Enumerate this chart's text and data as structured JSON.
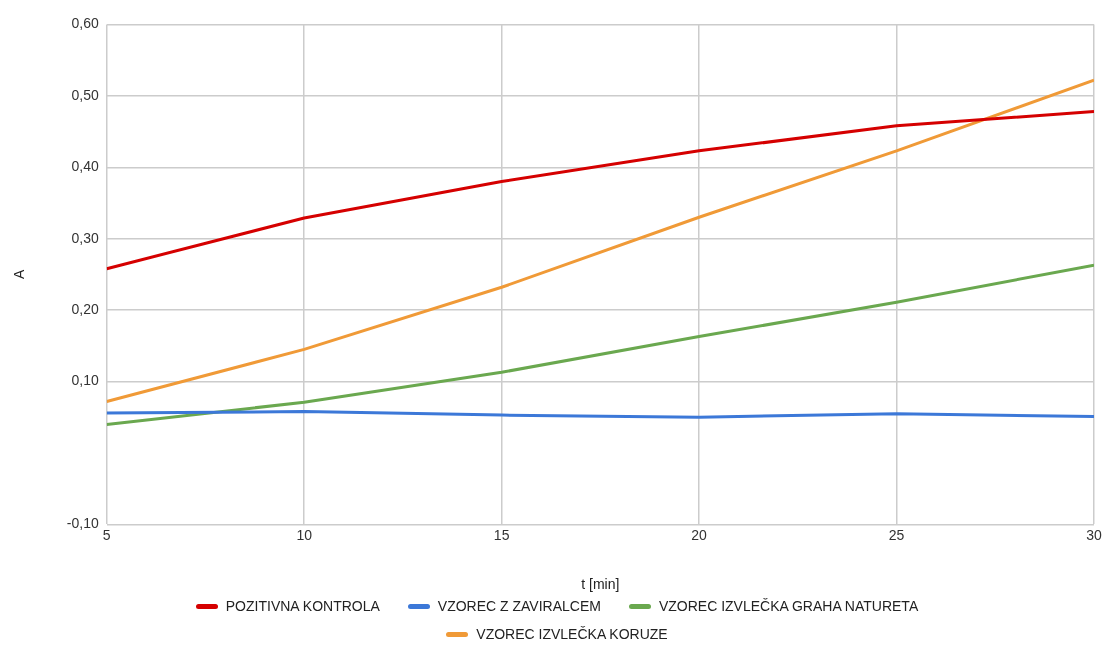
{
  "chart_data": {
    "type": "line",
    "xlabel": "t [min]",
    "ylabel": "A",
    "x": [
      5,
      10,
      15,
      20,
      25,
      30
    ],
    "series": [
      {
        "name": "POZITIVNA KONTROLA",
        "color": "#d50000",
        "values": [
          0.258,
          0.329,
          0.38,
          0.423,
          0.458,
          0.478
        ]
      },
      {
        "name": "VZOREC Z ZAVIRALCEM",
        "color": "#3c78d8",
        "values": [
          0.056,
          0.058,
          0.053,
          0.05,
          0.055,
          0.051
        ]
      },
      {
        "name": "VZOREC IZVLEČKA GRAHA NATURETA",
        "color": "#6aa84f",
        "values": [
          0.04,
          0.071,
          0.113,
          0.163,
          0.211,
          0.263
        ]
      },
      {
        "name": "VZOREC IZVLEČKA KORUZE",
        "color": "#f09a37",
        "values": [
          0.072,
          0.145,
          0.232,
          0.33,
          0.423,
          0.522
        ]
      }
    ],
    "xlim": [
      5,
      30
    ],
    "xticks": [
      5,
      10,
      15,
      20,
      25,
      30
    ],
    "ylim": [
      -0.1,
      0.6
    ],
    "yticks": [
      {
        "value": -0.1,
        "label": "-0,10"
      },
      {
        "value": 0.1,
        "label": "0,10"
      },
      {
        "value": 0.2,
        "label": "0,20"
      },
      {
        "value": 0.3,
        "label": "0,30"
      },
      {
        "value": 0.4,
        "label": "0,40"
      },
      {
        "value": 0.5,
        "label": "0,50"
      },
      {
        "value": 0.6,
        "label": "0,60"
      }
    ],
    "grid": true,
    "legend": "bottom",
    "marker": "none",
    "line_style": "solid"
  }
}
